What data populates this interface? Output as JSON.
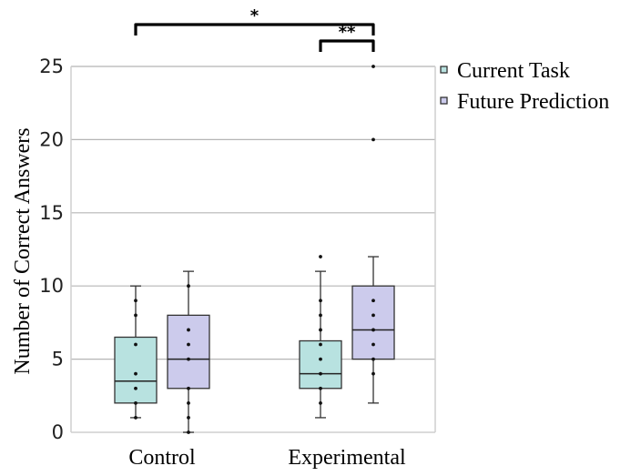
{
  "chart_data": {
    "type": "box",
    "ylabel": "Number of Correct Answers",
    "ylim": [
      0,
      25
    ],
    "yticks": [
      0,
      5,
      10,
      15,
      20,
      25
    ],
    "grid": true,
    "legend_position": "top-right",
    "categories": [
      "Control",
      "Experimental"
    ],
    "series": [
      {
        "name": "Current Task",
        "color": "#b8e2e0",
        "boxes": [
          {
            "category": "Control",
            "min": 1,
            "q1": 2,
            "median": 3.5,
            "q3": 6.5,
            "max": 10,
            "points": [
              1,
              2,
              3,
              4,
              6,
              8,
              9
            ]
          },
          {
            "category": "Experimental",
            "min": 1,
            "q1": 3,
            "median": 4,
            "q3": 6.25,
            "max": 11,
            "points": [
              2,
              3,
              4,
              5,
              6,
              7,
              8,
              9,
              12
            ]
          }
        ]
      },
      {
        "name": "Future Prediction",
        "color": "#cccbec",
        "boxes": [
          {
            "category": "Control",
            "min": 0,
            "q1": 3,
            "median": 5,
            "q3": 8,
            "max": 11,
            "points": [
              0,
              1,
              2,
              3,
              5,
              6,
              7,
              10
            ]
          },
          {
            "category": "Experimental",
            "min": 2,
            "q1": 5,
            "median": 7,
            "q3": 10,
            "max": 12,
            "points": [
              4,
              5,
              6,
              7,
              8,
              9,
              20,
              25
            ]
          }
        ]
      }
    ],
    "significance": [
      {
        "label": "*",
        "from": "Control / Current Task",
        "to": "Experimental / Future Prediction"
      },
      {
        "label": "**",
        "from": "Experimental / Current Task",
        "to": "Experimental / Future Prediction"
      }
    ]
  }
}
